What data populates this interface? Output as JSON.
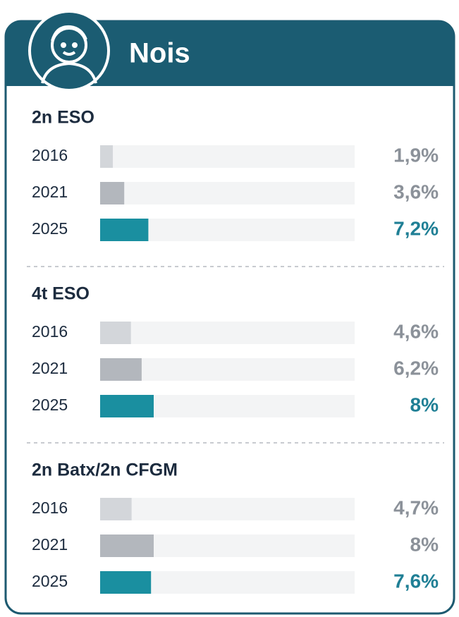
{
  "header": {
    "title": "Nois"
  },
  "chart_data": [
    {
      "type": "bar",
      "title": "2n ESO",
      "categories": [
        "2016",
        "2021",
        "2025"
      ],
      "values": [
        1.9,
        3.6,
        7.2
      ],
      "value_labels": [
        "1,9%",
        "3,6%",
        "7,2%"
      ],
      "colors": [
        "#d3d6da",
        "#b3b7bd",
        "#1a8fa0"
      ],
      "label_colors": [
        "#8b9199",
        "#8b9199",
        "#1f7f95"
      ],
      "xlim": [
        0,
        38
      ]
    },
    {
      "type": "bar",
      "title": "4t ESO",
      "categories": [
        "2016",
        "2021",
        "2025"
      ],
      "values": [
        4.6,
        6.2,
        8
      ],
      "value_labels": [
        "4,6%",
        "6,2%",
        "8%"
      ],
      "colors": [
        "#d3d6da",
        "#b3b7bd",
        "#1a8fa0"
      ],
      "label_colors": [
        "#8b9199",
        "#8b9199",
        "#1f7f95"
      ],
      "xlim": [
        0,
        38
      ]
    },
    {
      "type": "bar",
      "title": "2n Batx/2n CFGM",
      "categories": [
        "2016",
        "2021",
        "2025"
      ],
      "values": [
        4.7,
        8,
        7.6
      ],
      "value_labels": [
        "4,7%",
        "8%",
        "7,6%"
      ],
      "colors": [
        "#d3d6da",
        "#b3b7bd",
        "#1a8fa0"
      ],
      "label_colors": [
        "#8b9199",
        "#8b9199",
        "#1f7f95"
      ],
      "xlim": [
        0,
        38
      ]
    }
  ]
}
